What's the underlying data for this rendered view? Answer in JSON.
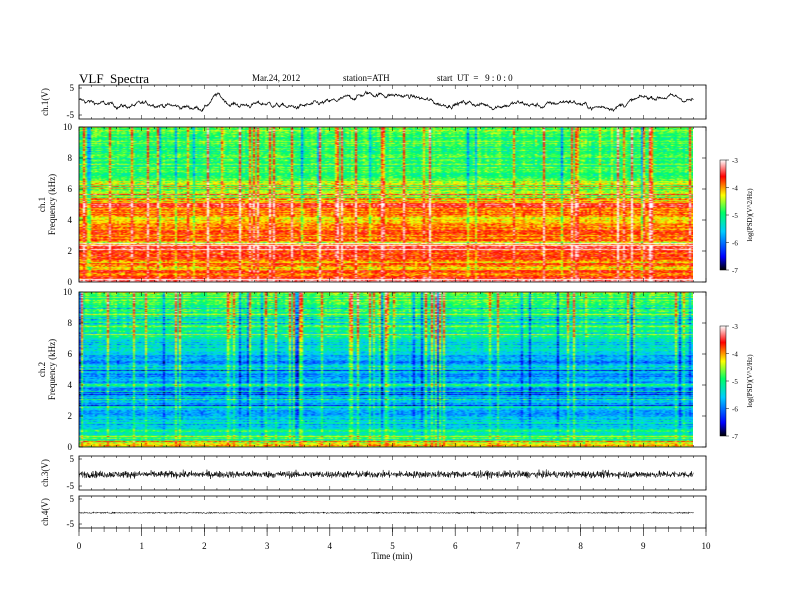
{
  "header": {
    "title": "VLF  Spectra",
    "date": "Mar.24, 2012",
    "station": "station=ATH",
    "start": "start  UT  =   9 : 0 : 0"
  },
  "colors": {
    "colormap": [
      "#000000",
      "#0000ff",
      "#00ccff",
      "#00ff66",
      "#ffff00",
      "#ff0000",
      "#ffffff"
    ]
  },
  "chart_data": [
    {
      "type": "line",
      "panel": "ch1-waveform",
      "ylabel": "ch.1(V)",
      "yticks": [
        "5",
        "-5"
      ],
      "ylim": [
        -5,
        5
      ],
      "xlim": [
        0,
        10
      ],
      "data_end_min": 9.8,
      "trend_x": [
        0,
        0.4,
        0.8,
        1.2,
        1.6,
        2.0,
        2.2,
        2.4,
        2.6,
        3.0,
        3.4,
        3.8,
        4.2,
        4.6,
        5.0,
        5.4,
        5.8,
        6.2,
        6.6,
        7.0,
        7.4,
        7.8,
        8.2,
        8.6,
        9.0,
        9.4,
        9.8
      ],
      "trend_y": [
        0.5,
        -0.8,
        -1.5,
        -0.5,
        -1.8,
        -2.0,
        2.5,
        -0.5,
        -1.2,
        -0.5,
        -2.0,
        -1.0,
        0.8,
        3.0,
        2.5,
        1.5,
        -1.0,
        -0.2,
        -1.5,
        -0.5,
        -1.5,
        0.5,
        -2.0,
        -1.5,
        1.5,
        2.0,
        0.5
      ]
    },
    {
      "type": "heatmap",
      "panel": "ch1-spectrogram",
      "ylabel": "ch.1\nFrequency  (kHz)",
      "ylabel_lines": [
        "ch.1",
        "Frequency  (kHz)"
      ],
      "yticks": [
        "0",
        "2",
        "4",
        "6",
        "8",
        "10"
      ],
      "ylim": [
        0,
        10
      ],
      "xlim": [
        0,
        10
      ],
      "zlabel": "log(PSD)(V^2/Hz)",
      "zlim": [
        -7,
        -3
      ],
      "zticks": [
        "-3",
        "-4",
        "-5",
        "-6",
        "-7"
      ],
      "profile_freq_khz": [
        0,
        0.5,
        1,
        1.5,
        2,
        2.5,
        3,
        3.5,
        4,
        4.5,
        5,
        5.5,
        6,
        7,
        8,
        9,
        10
      ],
      "profile_logpsd": [
        -3.2,
        -3.8,
        -4.0,
        -3.7,
        -3.6,
        -3.8,
        -3.7,
        -4.0,
        -4.2,
        -4.0,
        -3.7,
        -4.3,
        -4.6,
        -4.7,
        -4.8,
        -4.8,
        -4.7
      ]
    },
    {
      "type": "heatmap",
      "panel": "ch2-spectrogram",
      "ylabel": "ch.2\nFrequency  (kHz)",
      "ylabel_lines": [
        "ch.2",
        "Frequency  (kHz)"
      ],
      "yticks": [
        "0",
        "2",
        "4",
        "6",
        "8",
        "10"
      ],
      "ylim": [
        0,
        10
      ],
      "xlim": [
        0,
        10
      ],
      "zlabel": "log(PSD)(V^2/Hz)",
      "zlim": [
        -7,
        -3
      ],
      "zticks": [
        "-3",
        "-4",
        "-5",
        "-6",
        "-7"
      ],
      "profile_freq_khz": [
        0,
        0.5,
        1,
        1.5,
        2,
        2.5,
        3,
        3.5,
        4,
        4.5,
        5,
        5.5,
        6,
        7,
        8,
        9,
        10
      ],
      "profile_logpsd": [
        -4.0,
        -4.8,
        -5.3,
        -5.5,
        -5.6,
        -5.7,
        -5.7,
        -5.9,
        -5.6,
        -5.8,
        -5.7,
        -5.9,
        -5.6,
        -5.2,
        -5.0,
        -4.9,
        -4.8
      ]
    },
    {
      "type": "line",
      "panel": "ch3-waveform",
      "ylabel": "ch.3(V)",
      "yticks": [
        "5",
        "-5"
      ],
      "ylim": [
        -5,
        5
      ],
      "xlim": [
        0,
        10
      ],
      "data_end_min": 9.8,
      "mean_v": -0.5,
      "spread_v": 1.2
    },
    {
      "type": "line",
      "panel": "ch4-waveform",
      "ylabel": "ch.4(V)",
      "yticks": [
        "5",
        "-5"
      ],
      "ylim": [
        -5,
        5
      ],
      "xlim": [
        0,
        10
      ],
      "data_end_min": 9.8,
      "mean_v": -0.3,
      "spread_v": 0.3,
      "xlabel": "Time  (min)",
      "xticks": [
        "0",
        "1",
        "2",
        "3",
        "4",
        "5",
        "6",
        "7",
        "8",
        "9",
        "10"
      ]
    }
  ]
}
